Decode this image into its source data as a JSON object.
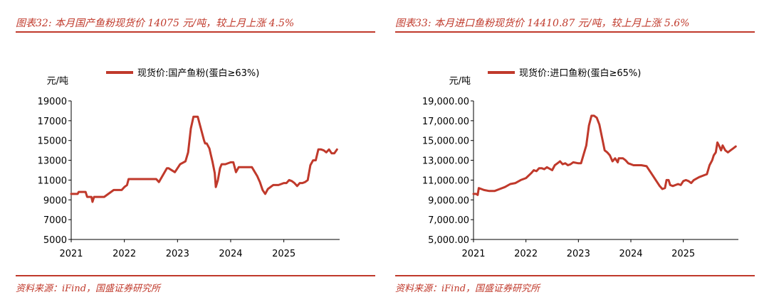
{
  "panels": [
    {
      "title": "图表32:  本月国产鱼粉现货价 14075 元/吨，较上月上涨 4.5%",
      "source": "资料来源：iFind，国盛证券研究所"
    },
    {
      "title": "图表33:  本月进口鱼粉现货价 14410.87 元/吨，较上月上涨 5.6%",
      "source": "资料来源：iFind，国盛证券研究所"
    }
  ],
  "chart_data": [
    {
      "type": "line",
      "title": "",
      "ylabel": "元/吨",
      "ylim": [
        5000,
        19000
      ],
      "y_ticks": [
        "19000",
        "17000",
        "15000",
        "13000",
        "11000",
        "9000",
        "7000",
        "5000"
      ],
      "y_tick_values": [
        19000,
        17000,
        15000,
        13000,
        11000,
        9000,
        7000,
        5000
      ],
      "xlim": [
        2021,
        2026.05
      ],
      "x_ticks": [
        "2021",
        "2022",
        "2023",
        "2024",
        "2025"
      ],
      "x_tick_values": [
        2021,
        2022,
        2023,
        2024,
        2025
      ],
      "series": [
        {
          "name": "现货价:国产鱼粉(蛋白≥63%)",
          "color": "#c0392b",
          "x": [
            2021.0,
            2021.12,
            2021.14,
            2021.27,
            2021.3,
            2021.38,
            2021.4,
            2021.43,
            2021.45,
            2021.6,
            2021.62,
            2021.8,
            2021.82,
            2021.95,
            2022.0,
            2022.05,
            2022.08,
            2022.4,
            2022.5,
            2022.55,
            2022.6,
            2022.65,
            2022.8,
            2022.83,
            2022.95,
            2023.05,
            2023.15,
            2023.2,
            2023.25,
            2023.3,
            2023.35,
            2023.38,
            2023.5,
            2023.52,
            2023.55,
            2023.6,
            2023.63,
            2023.66,
            2023.7,
            2023.72,
            2023.76,
            2023.78,
            2023.8,
            2023.83,
            2023.9,
            2024.0,
            2024.05,
            2024.1,
            2024.15,
            2024.3,
            2024.4,
            2024.5,
            2024.55,
            2024.6,
            2024.65,
            2024.7,
            2024.8,
            2024.9,
            2024.95,
            2025.0,
            2025.05,
            2025.1,
            2025.15,
            2025.2,
            2025.25,
            2025.3,
            2025.35,
            2025.4,
            2025.45,
            2025.5,
            2025.55,
            2025.6,
            2025.65,
            2025.7,
            2025.75,
            2025.8,
            2025.85,
            2025.9,
            2025.95,
            2026.0
          ],
          "values": [
            9600,
            9600,
            9800,
            9800,
            9300,
            9300,
            8800,
            9300,
            9300,
            9300,
            9300,
            10000,
            10000,
            10000,
            10300,
            10500,
            11100,
            11100,
            11100,
            11100,
            11100,
            10800,
            12200,
            12200,
            11800,
            12600,
            12900,
            13800,
            16200,
            17400,
            17400,
            17400,
            15000,
            14700,
            14700,
            14200,
            13500,
            12800,
            11700,
            10300,
            11000,
            11600,
            12200,
            12600,
            12600,
            12800,
            12800,
            11800,
            12300,
            12300,
            12300,
            11400,
            10800,
            10000,
            9600,
            10100,
            10500,
            10500,
            10600,
            10700,
            10700,
            11000,
            10900,
            10700,
            10400,
            10700,
            10700,
            10800,
            11000,
            12500,
            13000,
            13000,
            14100,
            14100,
            14000,
            13800,
            14100,
            13700,
            13700,
            14100
          ]
        }
      ]
    },
    {
      "type": "line",
      "title": "",
      "ylabel": "元/吨",
      "ylim": [
        5000,
        19000
      ],
      "y_ticks": [
        "19,000.00",
        "17,000.00",
        "15,000.00",
        "13,000.00",
        "11,000.00",
        "9,000.00",
        "7,000.00",
        "5,000.00"
      ],
      "y_tick_values": [
        19000,
        17000,
        15000,
        13000,
        11000,
        9000,
        7000,
        5000
      ],
      "xlim": [
        2021,
        2026.05
      ],
      "x_ticks": [
        "2021",
        "2022",
        "2023",
        "2024",
        "2025"
      ],
      "x_tick_values": [
        2021,
        2022,
        2023,
        2024,
        2025
      ],
      "series": [
        {
          "name": "现货价:进口鱼粉(蛋白≥65%)",
          "color": "#c0392b",
          "x": [
            2021.0,
            2021.05,
            2021.08,
            2021.1,
            2021.2,
            2021.3,
            2021.4,
            2021.5,
            2021.6,
            2021.7,
            2021.8,
            2021.9,
            2022.0,
            2022.1,
            2022.15,
            2022.2,
            2022.25,
            2022.3,
            2022.35,
            2022.4,
            2022.5,
            2022.55,
            2022.6,
            2022.65,
            2022.7,
            2022.75,
            2022.8,
            2022.85,
            2022.9,
            2023.0,
            2023.05,
            2023.1,
            2023.15,
            2023.2,
            2023.25,
            2023.3,
            2023.35,
            2023.4,
            2023.45,
            2023.5,
            2023.55,
            2023.6,
            2023.65,
            2023.7,
            2023.75,
            2023.77,
            2023.8,
            2023.85,
            2023.9,
            2023.95,
            2024.0,
            2024.05,
            2024.1,
            2024.2,
            2024.3,
            2024.4,
            2024.45,
            2024.5,
            2024.55,
            2024.6,
            2024.65,
            2024.68,
            2024.72,
            2024.75,
            2024.8,
            2024.9,
            2024.95,
            2025.0,
            2025.05,
            2025.1,
            2025.15,
            2025.2,
            2025.3,
            2025.4,
            2025.45,
            2025.5,
            2025.55,
            2025.58,
            2025.62,
            2025.65,
            2025.68,
            2025.72,
            2025.75,
            2025.8,
            2025.85,
            2025.9,
            2025.95,
            2026.0
          ],
          "values": [
            9600,
            9600,
            9500,
            10200,
            10000,
            9900,
            9900,
            10100,
            10300,
            10600,
            10700,
            11000,
            11200,
            11700,
            12000,
            11900,
            12200,
            12200,
            12100,
            12300,
            12000,
            12500,
            12700,
            12900,
            12600,
            12700,
            12500,
            12600,
            12800,
            12700,
            12700,
            13600,
            14500,
            16500,
            17500,
            17500,
            17300,
            16600,
            15300,
            14000,
            13800,
            13500,
            12900,
            13200,
            12800,
            13200,
            13200,
            13200,
            13000,
            12700,
            12600,
            12500,
            12500,
            12500,
            12400,
            11600,
            11200,
            10800,
            10400,
            10100,
            10200,
            11000,
            11000,
            10500,
            10400,
            10600,
            10500,
            10900,
            11000,
            10900,
            10700,
            11000,
            11300,
            11500,
            11600,
            12500,
            13000,
            13500,
            13800,
            14800,
            14500,
            14000,
            14500,
            14000,
            13800,
            14000,
            14200,
            14400
          ]
        }
      ]
    }
  ]
}
